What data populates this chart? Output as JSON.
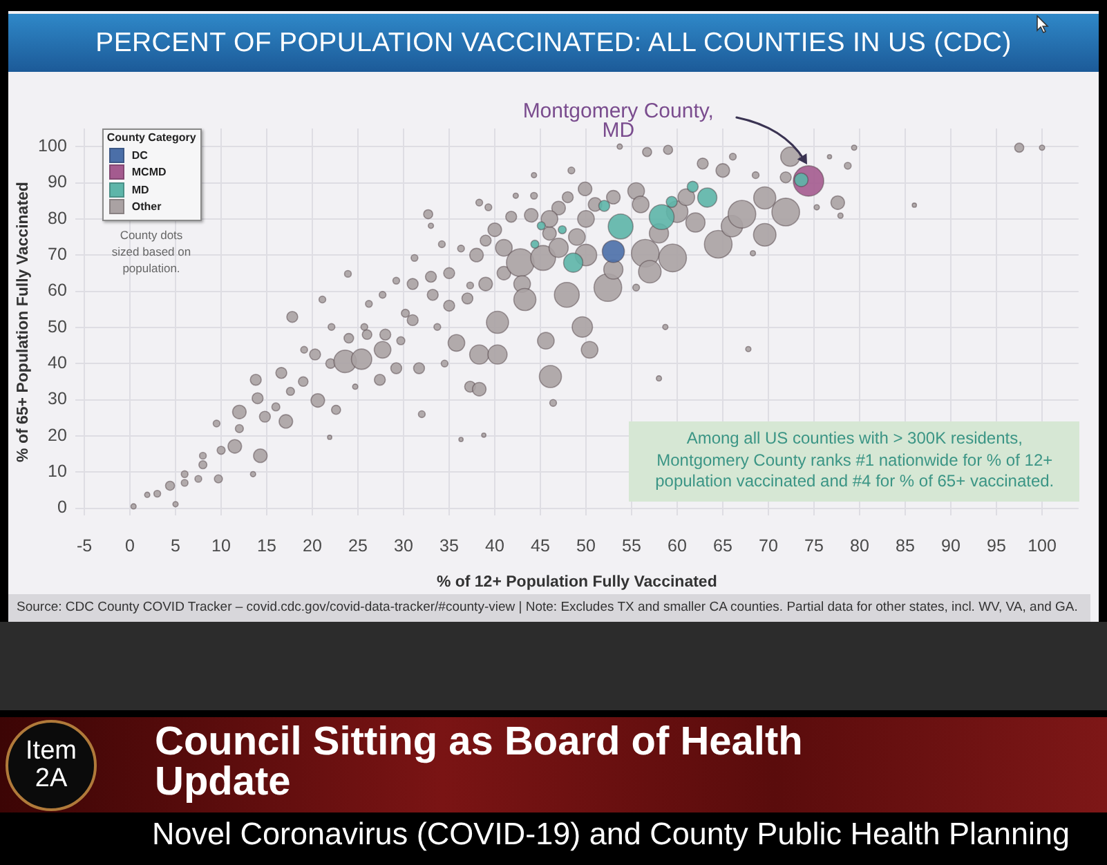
{
  "chart_data": {
    "type": "bubble",
    "title": "PERCENT OF POPULATION VACCINATED: ALL COUNTIES IN US (CDC)",
    "xlabel": "% of 12+ Population Fully Vaccinated",
    "ylabel": "% of 65+ Population Fully Vaccinated",
    "legend_title": "County Category",
    "legend": "top left",
    "grid": true,
    "marker": "circle",
    "xlim": [
      -6,
      104
    ],
    "xticks": [
      -5,
      0,
      5,
      10,
      15,
      20,
      25,
      30,
      35,
      40,
      45,
      50,
      55,
      60,
      65,
      70,
      75,
      80,
      85,
      90,
      95,
      100
    ],
    "ylim": [
      -2,
      105
    ],
    "yticks": [
      0,
      10,
      20,
      30,
      40,
      50,
      60,
      70,
      80,
      90,
      100
    ],
    "series": [
      {
        "name": "DC",
        "color": "#4b6fa8",
        "x": [
          53.0
        ],
        "values": [
          71.0
        ],
        "sizes": [
          0.53
        ]
      },
      {
        "name": "MCMD",
        "color": "#a45b8f",
        "x": [
          74.4
        ],
        "values": [
          90.5
        ],
        "sizes": [
          1
        ]
      },
      {
        "name": "MD",
        "color": "#5db5a9",
        "x": [
          53.8,
          58.3,
          63.3,
          48.6,
          73.6,
          52.0,
          61.7,
          59.4,
          45.1,
          47.4,
          44.4
        ],
        "values": [
          77.9,
          80.5,
          85.9,
          67.9,
          90.8,
          83.6,
          88.9,
          84.7,
          78.1,
          77.0,
          73.0
        ],
        "sizes": [
          0.67,
          0.67,
          0.4,
          0.4,
          0.2,
          0.13,
          0.13,
          0.13,
          0.07,
          0.07,
          0.07
        ]
      },
      {
        "name": "Other",
        "color": "#aaa2a3",
        "x": [
          0.4,
          1.9,
          3,
          4.4,
          5,
          6,
          6,
          7.5,
          8,
          8,
          9.7,
          9.5,
          10,
          11.5,
          12,
          12,
          13.5,
          14.3,
          13.8,
          14,
          14.8,
          16,
          16.6,
          17.1,
          17.6,
          17.8,
          19.1,
          19,
          20.3,
          20.6,
          21.1,
          21.9,
          22.1,
          22.6,
          22,
          23.6,
          23.9,
          24.7,
          24,
          25.4,
          25.7,
          26.2,
          26,
          27.4,
          27.7,
          27.7,
          28,
          29.2,
          29.7,
          29.2,
          30.2,
          31,
          31,
          31.2,
          31.7,
          32,
          32.7,
          33,
          33,
          33.2,
          33.7,
          34.2,
          34.5,
          35,
          35,
          35.8,
          36.3,
          36.3,
          37,
          37.3,
          37.3,
          38,
          38.3,
          38.3,
          38.3,
          38.8,
          39,
          39.3,
          39,
          40.3,
          40.3,
          40,
          41,
          41,
          41.8,
          42.3,
          42.8,
          43,
          43.3,
          44.3,
          44.3,
          44,
          45.3,
          45.6,
          46.1,
          46.4,
          47,
          47.9,
          47,
          46,
          46,
          48,
          48.4,
          49.6,
          50.4,
          49.9,
          50,
          49,
          50,
          51,
          52.4,
          53,
          53.7,
          53,
          55.5,
          55.5,
          56.5,
          56.7,
          57,
          56,
          58,
          58.7,
          59,
          58,
          59.5,
          60,
          61,
          62,
          62.8,
          64.5,
          65,
          66,
          66.1,
          67.1,
          67.8,
          68.3,
          68.6,
          69.6,
          69.6,
          71.9,
          72.4,
          71.9,
          75.3,
          76.7,
          77.6,
          77.9,
          78.7,
          79.4,
          86,
          97.5,
          100
        ],
        "values": [
          0.5,
          3.7,
          4,
          6.2,
          1.1,
          7,
          9.4,
          8.1,
          14.5,
          12,
          8.1,
          23.4,
          16,
          17.1,
          22,
          26.6,
          9.4,
          14.5,
          35.5,
          30.4,
          25.3,
          28,
          37.4,
          24,
          32.3,
          52.9,
          43.8,
          35,
          42.5,
          29.8,
          57.7,
          19.6,
          50.1,
          27.2,
          40,
          40.6,
          64.8,
          33.6,
          47,
          41.2,
          50.1,
          56.5,
          48,
          35.5,
          59,
          43.8,
          48,
          62.9,
          46.3,
          38.7,
          53.9,
          52,
          62,
          69.2,
          38.7,
          26,
          81.3,
          78.1,
          64,
          59,
          50.1,
          73,
          40,
          65,
          56,
          45.7,
          19,
          71.8,
          58,
          33.6,
          61.6,
          70,
          84.5,
          32.9,
          42.5,
          20.2,
          62,
          83.2,
          74,
          42.5,
          51.4,
          77,
          65,
          72,
          80.6,
          86.4,
          67.9,
          62,
          57.7,
          86.4,
          92.1,
          81,
          69.2,
          46.3,
          36.4,
          29.1,
          83,
          59,
          72,
          76,
          80,
          86,
          93.4,
          50.1,
          43.8,
          88.3,
          70,
          75,
          80,
          84,
          61,
          86,
          100,
          66,
          61,
          87.7,
          70.5,
          98.5,
          65.4,
          84,
          35.9,
          50.1,
          99.1,
          76,
          69.2,
          82,
          86,
          79,
          95.3,
          73,
          93.4,
          78,
          97.2,
          81.3,
          44,
          70.5,
          92.1,
          85.8,
          75.6,
          81.9,
          97.2,
          91.5,
          83.2,
          97.2,
          84.5,
          80.9,
          94.7,
          99.7,
          83.8,
          99.7,
          99.7
        ],
        "sizes": [
          0.03,
          0.03,
          0.05,
          0.09,
          0.03,
          0.05,
          0.05,
          0.05,
          0.05,
          0.07,
          0.07,
          0.05,
          0.07,
          0.2,
          0.07,
          0.2,
          0.03,
          0.2,
          0.13,
          0.13,
          0.13,
          0.07,
          0.13,
          0.2,
          0.07,
          0.13,
          0.05,
          0.1,
          0.13,
          0.2,
          0.05,
          0.02,
          0.05,
          0.09,
          0.1,
          0.55,
          0.05,
          0.03,
          0.1,
          0.45,
          0.05,
          0.05,
          0.1,
          0.13,
          0.05,
          0.3,
          0.13,
          0.05,
          0.07,
          0.13,
          0.07,
          0.13,
          0.13,
          0.05,
          0.13,
          0.05,
          0.09,
          0.03,
          0.13,
          0.13,
          0.05,
          0.05,
          0.05,
          0.13,
          0.13,
          0.3,
          0.02,
          0.05,
          0.13,
          0.13,
          0.05,
          0.2,
          0.05,
          0.2,
          0.4,
          0.02,
          0.2,
          0.05,
          0.13,
          0.4,
          0.53,
          0.2,
          0.2,
          0.3,
          0.13,
          0.03,
          0.83,
          0.3,
          0.53,
          0.05,
          0.03,
          0.2,
          0.67,
          0.3,
          0.53,
          0.05,
          0.2,
          0.67,
          0.4,
          0.2,
          0.3,
          0.13,
          0.05,
          0.45,
          0.3,
          0.2,
          0.5,
          0.3,
          0.3,
          0.2,
          0.83,
          0.2,
          0.03,
          0.4,
          0.05,
          0.3,
          0.83,
          0.09,
          0.55,
          0.3,
          0.03,
          0.03,
          0.09,
          0.4,
          0.83,
          0.5,
          0.3,
          0.4,
          0.13,
          0.83,
          0.2,
          0.5,
          0.05,
          0.83,
          0.03,
          0.03,
          0.05,
          0.53,
          0.55,
          0.83,
          0.4,
          0.13,
          0.03,
          0.02,
          0.2,
          0.03,
          0.05,
          0.03,
          0.02,
          0.09,
          0.03
        ]
      }
    ],
    "annotations": [
      {
        "text": "Montgomery County, MD",
        "x": 74.3,
        "y": 95.2
      },
      "County dots sized based on population.",
      "Among all US counties with > 300K residents, Montgomery County ranks #1 nationwide for % of 12+ population vaccinated and #4 for % of 65+ vaccinated.",
      "Source: CDC County COVID Tracker – covid.cdc.gov/covid-data-tracker/#county-view | Note: Excludes TX and smaller CA counties. Partial data for other states, incl. WV, VA, and GA.",
      "Item 2A",
      "Council Sitting as Board of Health Update",
      "Novel Coronavirus (COVID-19) and County Public Health Planning"
    ]
  }
}
